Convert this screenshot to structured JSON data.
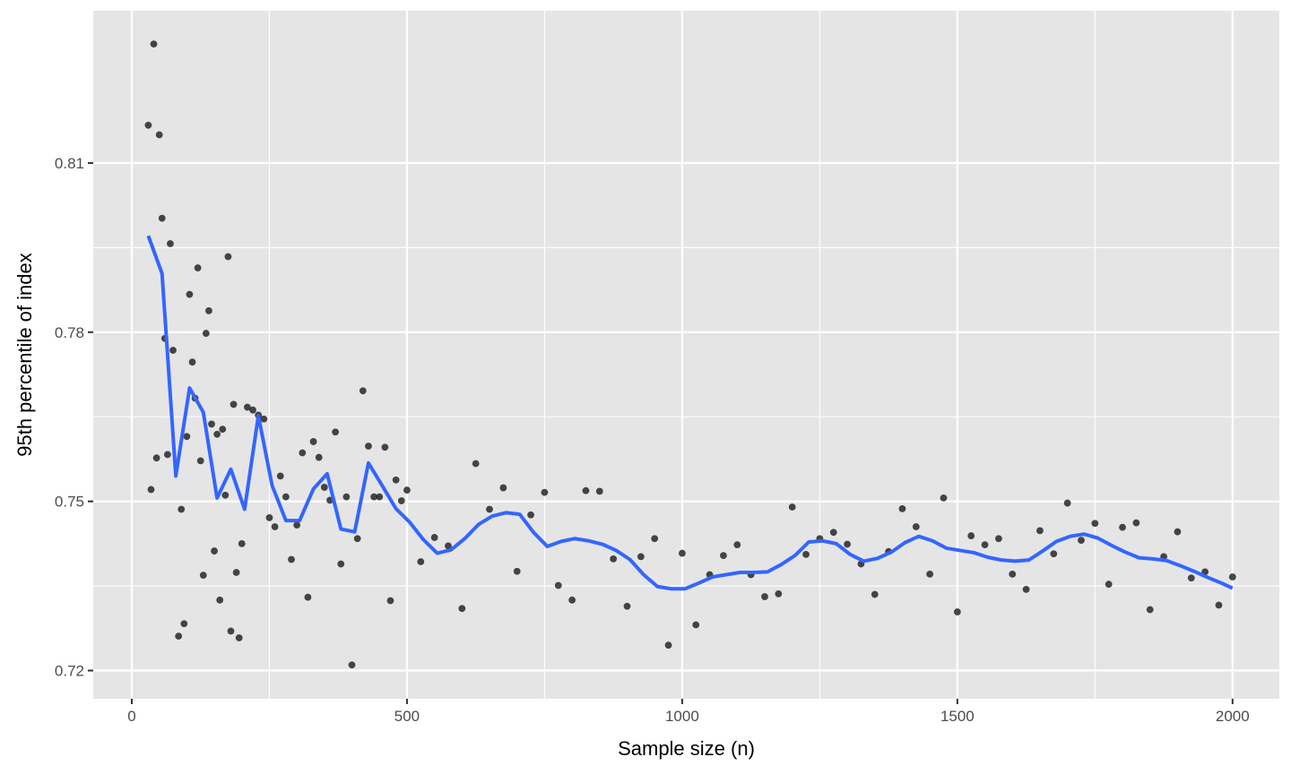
{
  "chart_data": {
    "type": "scatter",
    "title": "",
    "xlabel": "Sample size (n)",
    "ylabel": "95th percentile of index",
    "xlim": [
      -70,
      2085
    ],
    "ylim": [
      0.715,
      0.837
    ],
    "x_ticks": [
      0,
      500,
      1000,
      1500,
      2000
    ],
    "x_tick_labels": [
      "0",
      "500",
      "1000",
      "1500",
      "2000"
    ],
    "y_ticks": [
      0.72,
      0.75,
      0.78,
      0.81
    ],
    "y_tick_labels": [
      "0.72",
      "0.75",
      "0.78",
      "0.81"
    ],
    "x_minor_ticks": [
      250,
      750,
      1250,
      1750
    ],
    "y_minor_ticks": [
      0.735,
      0.765,
      0.795
    ],
    "grid": true,
    "legend": "none",
    "colors": {
      "panel_background": "#e5e5e5",
      "grid": "#ffffff",
      "point": "#1a1a1a",
      "smooth_line": "#3366ff"
    },
    "series": [
      {
        "type": "scatter",
        "points": [
          [
            30,
            0.8167
          ],
          [
            35,
            0.7521
          ],
          [
            40,
            0.8311
          ],
          [
            45,
            0.7577
          ],
          [
            50,
            0.815
          ],
          [
            55,
            0.8002
          ],
          [
            60,
            0.7789
          ],
          [
            65,
            0.7583
          ],
          [
            70,
            0.7957
          ],
          [
            75,
            0.7768
          ],
          [
            85,
            0.7261
          ],
          [
            90,
            0.7486
          ],
          [
            95,
            0.7283
          ],
          [
            100,
            0.7615
          ],
          [
            105,
            0.7867
          ],
          [
            110,
            0.7747
          ],
          [
            115,
            0.7683
          ],
          [
            120,
            0.7914
          ],
          [
            125,
            0.7572
          ],
          [
            130,
            0.7369
          ],
          [
            135,
            0.7798
          ],
          [
            140,
            0.7838
          ],
          [
            145,
            0.7637
          ],
          [
            150,
            0.7412
          ],
          [
            155,
            0.7619
          ],
          [
            160,
            0.7325
          ],
          [
            165,
            0.7628
          ],
          [
            170,
            0.7511
          ],
          [
            175,
            0.7934
          ],
          [
            180,
            0.727
          ],
          [
            185,
            0.7672
          ],
          [
            190,
            0.7374
          ],
          [
            195,
            0.7258
          ],
          [
            200,
            0.7425
          ],
          [
            210,
            0.7667
          ],
          [
            220,
            0.7662
          ],
          [
            230,
            0.7653
          ],
          [
            240,
            0.7646
          ],
          [
            250,
            0.7471
          ],
          [
            260,
            0.7455
          ],
          [
            270,
            0.7545
          ],
          [
            280,
            0.7508
          ],
          [
            290,
            0.7397
          ],
          [
            300,
            0.7458
          ],
          [
            310,
            0.7586
          ],
          [
            320,
            0.733
          ],
          [
            330,
            0.7606
          ],
          [
            340,
            0.7578
          ],
          [
            350,
            0.7525
          ],
          [
            360,
            0.7502
          ],
          [
            370,
            0.7623
          ],
          [
            380,
            0.7389
          ],
          [
            390,
            0.7508
          ],
          [
            400,
            0.721
          ],
          [
            410,
            0.7434
          ],
          [
            420,
            0.7696
          ],
          [
            430,
            0.7598
          ],
          [
            440,
            0.7508
          ],
          [
            450,
            0.7508
          ],
          [
            460,
            0.7596
          ],
          [
            470,
            0.7324
          ],
          [
            480,
            0.7538
          ],
          [
            490,
            0.7501
          ],
          [
            500,
            0.752
          ],
          [
            525,
            0.7393
          ],
          [
            550,
            0.7436
          ],
          [
            575,
            0.7421
          ],
          [
            600,
            0.731
          ],
          [
            625,
            0.7567
          ],
          [
            650,
            0.7486
          ],
          [
            675,
            0.7524
          ],
          [
            700,
            0.7376
          ],
          [
            725,
            0.7476
          ],
          [
            750,
            0.7516
          ],
          [
            775,
            0.7351
          ],
          [
            800,
            0.7325
          ],
          [
            825,
            0.7519
          ],
          [
            850,
            0.7518
          ],
          [
            875,
            0.7398
          ],
          [
            900,
            0.7314
          ],
          [
            925,
            0.7402
          ],
          [
            950,
            0.7434
          ],
          [
            975,
            0.7245
          ],
          [
            1000,
            0.7408
          ],
          [
            1025,
            0.7281
          ],
          [
            1050,
            0.737
          ],
          [
            1075,
            0.7404
          ],
          [
            1100,
            0.7423
          ],
          [
            1125,
            0.737
          ],
          [
            1150,
            0.7331
          ],
          [
            1175,
            0.7336
          ],
          [
            1200,
            0.749
          ],
          [
            1225,
            0.7406
          ],
          [
            1250,
            0.7434
          ],
          [
            1275,
            0.7445
          ],
          [
            1300,
            0.7424
          ],
          [
            1325,
            0.7389
          ],
          [
            1350,
            0.7335
          ],
          [
            1375,
            0.7411
          ],
          [
            1400,
            0.7487
          ],
          [
            1425,
            0.7455
          ],
          [
            1450,
            0.7371
          ],
          [
            1475,
            0.7506
          ],
          [
            1500,
            0.7304
          ],
          [
            1525,
            0.7439
          ],
          [
            1550,
            0.7423
          ],
          [
            1575,
            0.7434
          ],
          [
            1600,
            0.7371
          ],
          [
            1625,
            0.7344
          ],
          [
            1650,
            0.7448
          ],
          [
            1675,
            0.7407
          ],
          [
            1700,
            0.7497
          ],
          [
            1725,
            0.7431
          ],
          [
            1750,
            0.7461
          ],
          [
            1775,
            0.7353
          ],
          [
            1800,
            0.7454
          ],
          [
            1825,
            0.7462
          ],
          [
            1850,
            0.7308
          ],
          [
            1875,
            0.7402
          ],
          [
            1900,
            0.7446
          ],
          [
            1925,
            0.7364
          ],
          [
            1950,
            0.7375
          ],
          [
            1975,
            0.7316
          ],
          [
            2000,
            0.7366
          ]
        ]
      },
      {
        "type": "line",
        "points": [
          [
            30,
            0.7971
          ],
          [
            55,
            0.7904
          ],
          [
            80,
            0.7545
          ],
          [
            105,
            0.7701
          ],
          [
            130,
            0.7658
          ],
          [
            155,
            0.7506
          ],
          [
            180,
            0.7557
          ],
          [
            205,
            0.7486
          ],
          [
            230,
            0.7652
          ],
          [
            255,
            0.7528
          ],
          [
            280,
            0.7466
          ],
          [
            305,
            0.7466
          ],
          [
            330,
            0.7522
          ],
          [
            355,
            0.7549
          ],
          [
            380,
            0.7451
          ],
          [
            405,
            0.7446
          ],
          [
            430,
            0.7568
          ],
          [
            455,
            0.7528
          ],
          [
            480,
            0.7487
          ],
          [
            505,
            0.7463
          ],
          [
            530,
            0.7432
          ],
          [
            555,
            0.7408
          ],
          [
            580,
            0.7414
          ],
          [
            605,
            0.7434
          ],
          [
            630,
            0.7459
          ],
          [
            655,
            0.7474
          ],
          [
            680,
            0.748
          ],
          [
            705,
            0.7477
          ],
          [
            730,
            0.7445
          ],
          [
            755,
            0.742
          ],
          [
            780,
            0.7429
          ],
          [
            805,
            0.7434
          ],
          [
            830,
            0.743
          ],
          [
            855,
            0.7424
          ],
          [
            880,
            0.7413
          ],
          [
            905,
            0.7397
          ],
          [
            930,
            0.737
          ],
          [
            955,
            0.7349
          ],
          [
            980,
            0.7345
          ],
          [
            1005,
            0.7345
          ],
          [
            1030,
            0.7355
          ],
          [
            1055,
            0.7366
          ],
          [
            1080,
            0.737
          ],
          [
            1105,
            0.7374
          ],
          [
            1130,
            0.7374
          ],
          [
            1155,
            0.7375
          ],
          [
            1180,
            0.7388
          ],
          [
            1205,
            0.7404
          ],
          [
            1230,
            0.7428
          ],
          [
            1255,
            0.743
          ],
          [
            1280,
            0.7425
          ],
          [
            1305,
            0.7406
          ],
          [
            1330,
            0.7394
          ],
          [
            1355,
            0.7399
          ],
          [
            1380,
            0.741
          ],
          [
            1405,
            0.7427
          ],
          [
            1430,
            0.7438
          ],
          [
            1455,
            0.743
          ],
          [
            1480,
            0.7417
          ],
          [
            1505,
            0.7413
          ],
          [
            1530,
            0.7409
          ],
          [
            1555,
            0.7401
          ],
          [
            1580,
            0.7396
          ],
          [
            1605,
            0.7394
          ],
          [
            1630,
            0.7396
          ],
          [
            1655,
            0.7412
          ],
          [
            1680,
            0.7429
          ],
          [
            1705,
            0.7438
          ],
          [
            1730,
            0.7442
          ],
          [
            1755,
            0.7435
          ],
          [
            1780,
            0.7422
          ],
          [
            1805,
            0.741
          ],
          [
            1830,
            0.74
          ],
          [
            1855,
            0.7398
          ],
          [
            1880,
            0.7395
          ],
          [
            1905,
            0.7386
          ],
          [
            1930,
            0.7376
          ],
          [
            1955,
            0.7365
          ],
          [
            1980,
            0.7355
          ],
          [
            2000,
            0.7346
          ]
        ]
      }
    ]
  }
}
